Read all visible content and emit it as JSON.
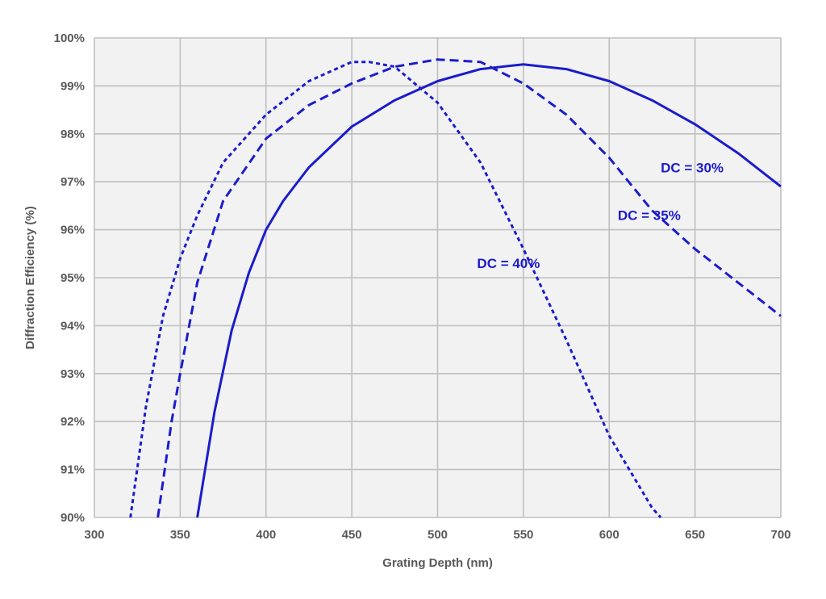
{
  "chart_data": {
    "type": "line",
    "title": "",
    "xlabel": "Grating Depth (nm)",
    "ylabel": "Diffraction Efficiency (%)",
    "xlim": [
      300,
      700
    ],
    "ylim": [
      90,
      100
    ],
    "x_ticks": [
      300,
      350,
      400,
      450,
      500,
      550,
      600,
      650,
      700
    ],
    "y_ticks": [
      90,
      91,
      92,
      93,
      94,
      95,
      96,
      97,
      98,
      99,
      100
    ],
    "x_tick_labels": [
      "300",
      "350",
      "400",
      "450",
      "500",
      "550",
      "600",
      "650",
      "700"
    ],
    "y_tick_labels": [
      "90%",
      "91%",
      "92%",
      "93%",
      "94%",
      "95%",
      "96%",
      "97%",
      "98%",
      "99%",
      "100%"
    ],
    "grid": true,
    "legend": "none",
    "colors": {
      "series": "#1c1ccc",
      "plot_bg": "#f2f2f2",
      "grid": "#bfbfbf",
      "text": "#595959"
    },
    "series": [
      {
        "name": "DC = 30%",
        "style": "solid",
        "label_at": [
          630,
          97.2
        ],
        "x": [
          360,
          370,
          380,
          390,
          400,
          410,
          425,
          450,
          475,
          500,
          525,
          550,
          575,
          600,
          625,
          650,
          675,
          700
        ],
        "y": [
          90.0,
          92.2,
          93.9,
          95.1,
          96.0,
          96.6,
          97.3,
          98.15,
          98.7,
          99.1,
          99.35,
          99.45,
          99.35,
          99.1,
          98.7,
          98.2,
          97.6,
          96.9
        ]
      },
      {
        "name": "DC = 35%",
        "style": "dashed",
        "label_at": [
          605,
          96.2
        ],
        "x": [
          337,
          345,
          350,
          360,
          375,
          400,
          425,
          450,
          475,
          500,
          525,
          550,
          575,
          600,
          625,
          650,
          675,
          700
        ],
        "y": [
          90.0,
          92.0,
          93.0,
          94.9,
          96.6,
          97.9,
          98.6,
          99.05,
          99.4,
          99.55,
          99.5,
          99.05,
          98.4,
          97.5,
          96.4,
          95.6,
          94.9,
          94.2
        ]
      },
      {
        "name": "DC = 40%",
        "style": "dotted",
        "label_at": [
          523,
          95.2
        ],
        "x": [
          321,
          330,
          340,
          350,
          360,
          375,
          400,
          425,
          450,
          460,
          475,
          500,
          525,
          550,
          575,
          600,
          625,
          630
        ],
        "y": [
          90.0,
          92.3,
          94.2,
          95.4,
          96.3,
          97.4,
          98.4,
          99.1,
          99.5,
          99.5,
          99.4,
          98.65,
          97.4,
          95.6,
          93.7,
          91.7,
          90.2,
          90.0
        ]
      }
    ]
  }
}
